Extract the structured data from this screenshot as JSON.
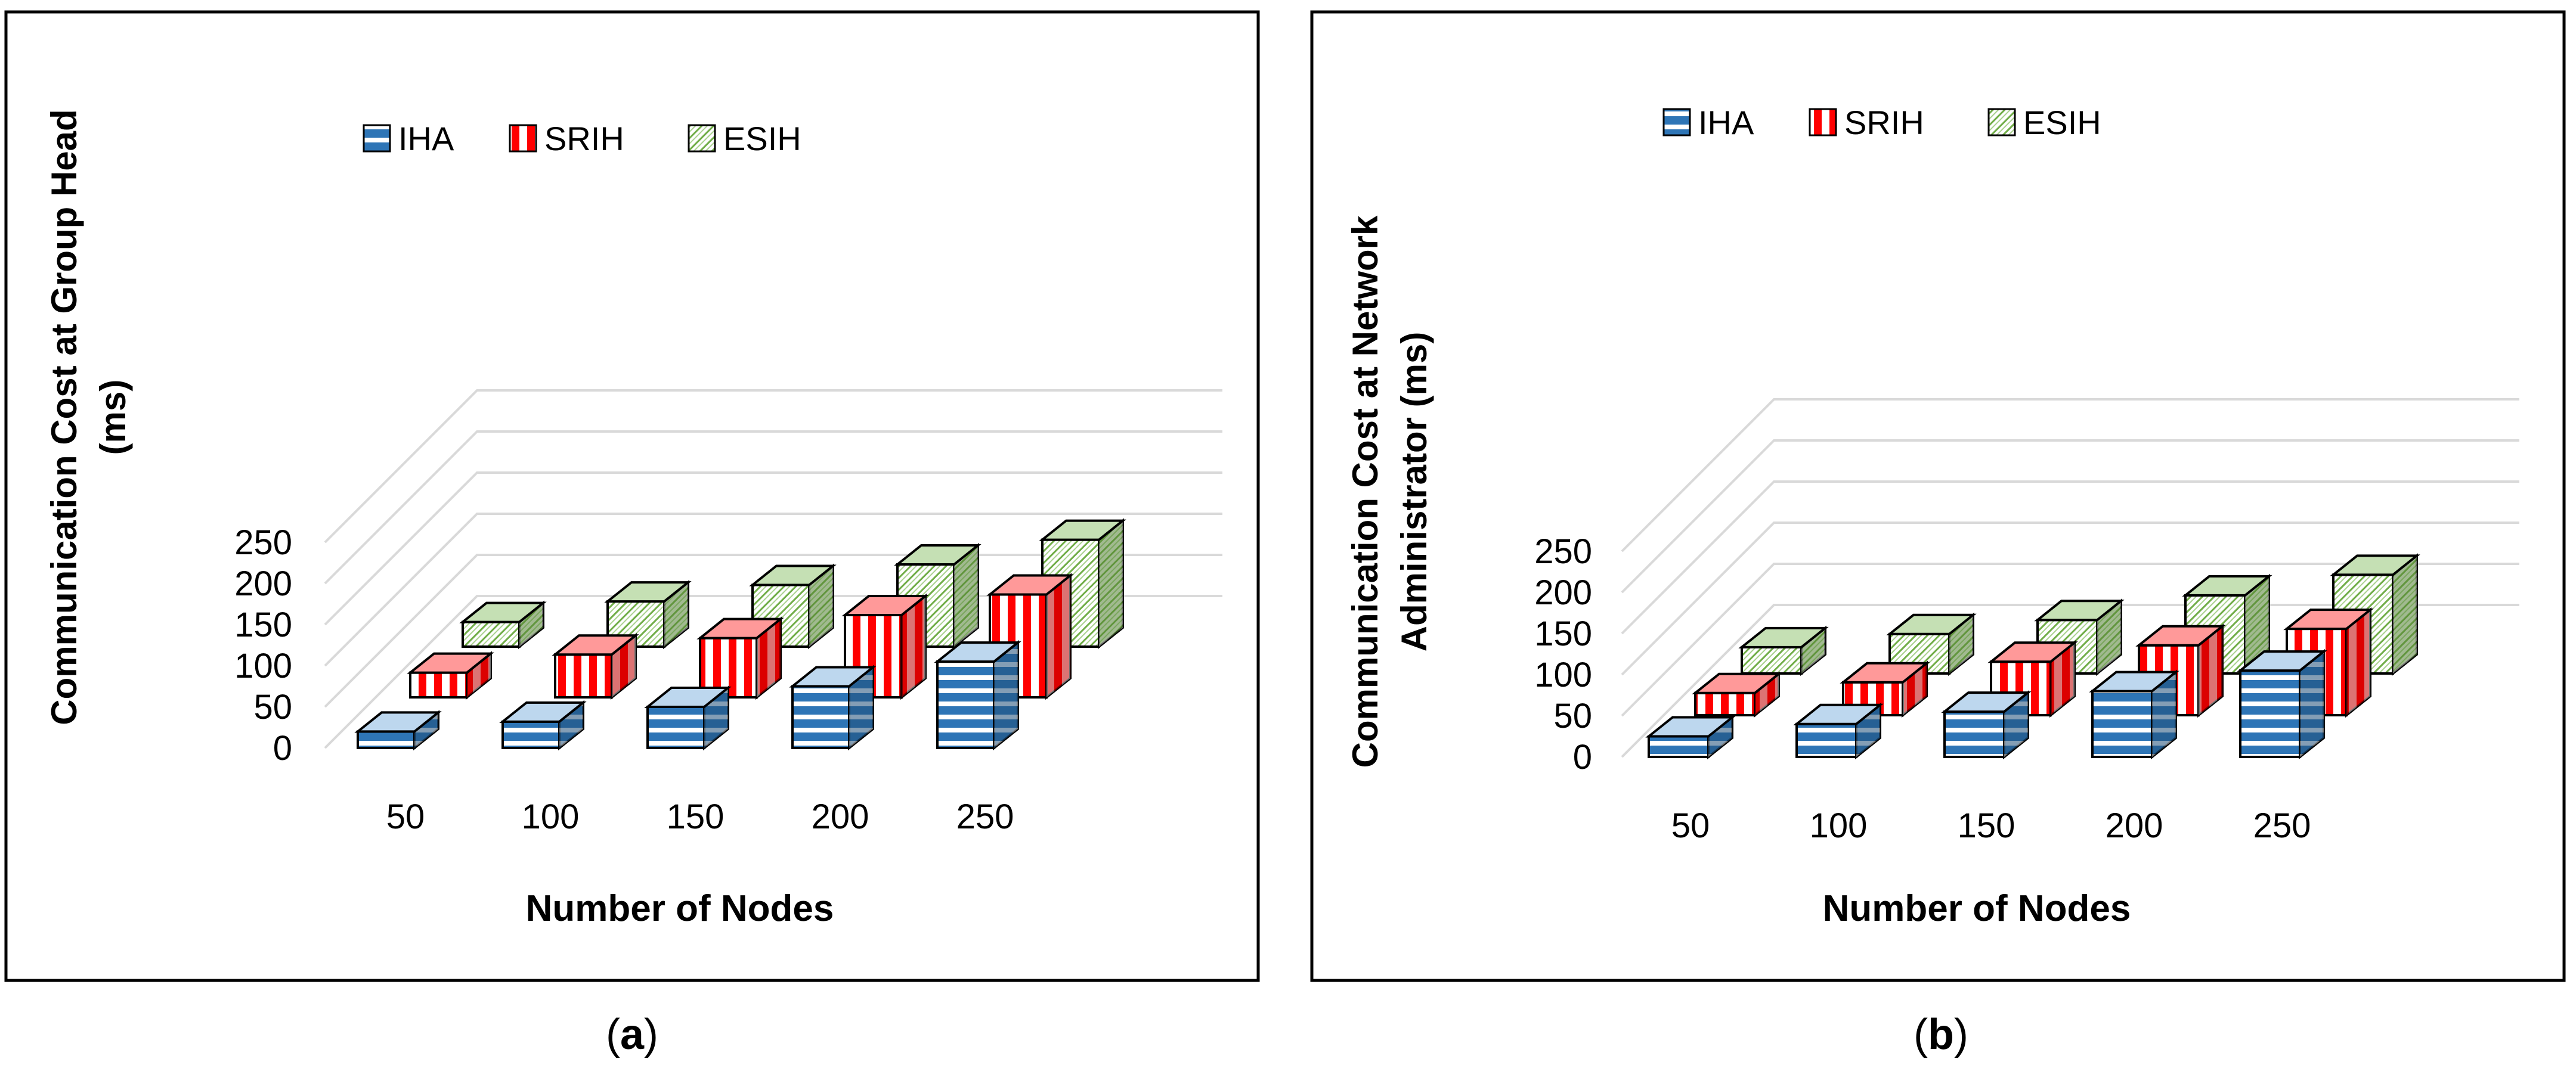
{
  "figure": {
    "panels": [
      {
        "caption_label": "a"
      },
      {
        "caption_label": "b"
      }
    ]
  },
  "chart_data": [
    {
      "type": "bar",
      "title": "",
      "xlabel": "Number of Nodes",
      "ylabel_lines": [
        "Communication Cost at Group Head",
        "(ms)"
      ],
      "categories": [
        "50",
        "100",
        "150",
        "200",
        "250"
      ],
      "yticks": [
        "0",
        "50",
        "100",
        "150",
        "200",
        "250"
      ],
      "ylim": [
        0,
        250
      ],
      "grid": true,
      "legend_position": "top",
      "series": [
        {
          "name": "IHA",
          "values": [
            20,
            32,
            50,
            75,
            105
          ]
        },
        {
          "name": "SRIH",
          "values": [
            30,
            52,
            72,
            100,
            125
          ]
        },
        {
          "name": "ESIH",
          "values": [
            30,
            55,
            75,
            100,
            130
          ]
        }
      ],
      "colors": {
        "IHA": "#2E75B6",
        "SRIH": "#FF0000",
        "ESIH": "#70AD47"
      }
    },
    {
      "type": "bar",
      "title": "",
      "xlabel": "Number of Nodes",
      "ylabel_lines": [
        "Communication Cost at Network",
        "Administrator (ms)"
      ],
      "categories": [
        "50",
        "100",
        "150",
        "200",
        "250"
      ],
      "yticks": [
        "0",
        "50",
        "100",
        "150",
        "200",
        "250"
      ],
      "ylim": [
        0,
        250
      ],
      "grid": true,
      "legend_position": "top",
      "series": [
        {
          "name": "IHA",
          "values": [
            25,
            40,
            55,
            80,
            105
          ]
        },
        {
          "name": "SRIH",
          "values": [
            27,
            40,
            65,
            85,
            105
          ]
        },
        {
          "name": "ESIH",
          "values": [
            32,
            48,
            65,
            95,
            120
          ]
        }
      ],
      "colors": {
        "IHA": "#2E75B6",
        "SRIH": "#FF0000",
        "ESIH": "#70AD47"
      }
    }
  ]
}
